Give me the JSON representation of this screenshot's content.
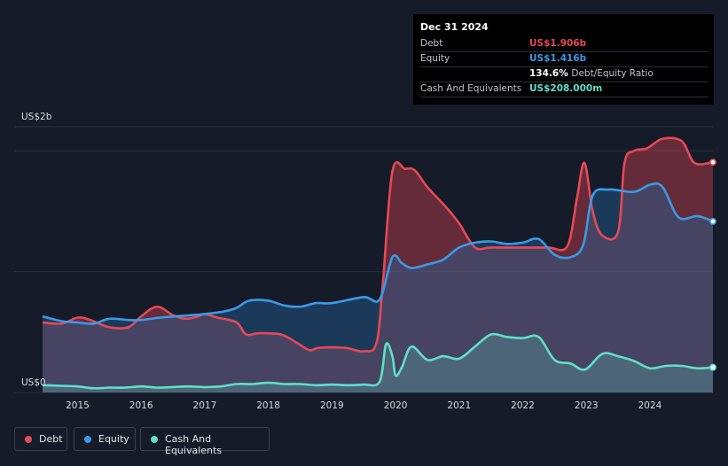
{
  "tooltip": {
    "date": "Dec 31 2024",
    "rows": [
      {
        "label": "Debt",
        "value": "US$1.906b",
        "color": "#e84855"
      },
      {
        "label": "Equity",
        "value": "US$1.416b",
        "color": "#3a9ae8"
      },
      {
        "label": "",
        "value": "134.6%",
        "suffix": "Debt/Equity Ratio",
        "color": "#ffffff"
      },
      {
        "label": "Cash And Equivalents",
        "value": "US$208.000m",
        "color": "#5fe0c8"
      }
    ]
  },
  "legend": [
    {
      "label": "Debt",
      "color": "#e84855"
    },
    {
      "label": "Equity",
      "color": "#3a9ae8"
    },
    {
      "label": "Cash And Equivalents",
      "color": "#5fe0c8"
    }
  ],
  "chart_data": {
    "type": "area",
    "ylabel_top": "US$2b",
    "ylabel_bottom": "US$0",
    "ylim": [
      0,
      2.2
    ],
    "xlim": [
      2014.45,
      2024.99
    ],
    "x_ticks": [
      "2015",
      "2016",
      "2017",
      "2018",
      "2019",
      "2020",
      "2021",
      "2022",
      "2023",
      "2024"
    ],
    "x_tick_values": [
      2015,
      2016,
      2017,
      2018,
      2019,
      2020,
      2021,
      2022,
      2023,
      2024
    ],
    "series": [
      {
        "name": "Debt",
        "color": "#e84855",
        "points": [
          [
            2014.45,
            0.58
          ],
          [
            2014.75,
            0.57
          ],
          [
            2015.0,
            0.62
          ],
          [
            2015.2,
            0.6
          ],
          [
            2015.5,
            0.54
          ],
          [
            2015.8,
            0.54
          ],
          [
            2016.0,
            0.63
          ],
          [
            2016.25,
            0.71
          ],
          [
            2016.5,
            0.64
          ],
          [
            2016.7,
            0.61
          ],
          [
            2016.9,
            0.63
          ],
          [
            2017.0,
            0.65
          ],
          [
            2017.2,
            0.62
          ],
          [
            2017.5,
            0.58
          ],
          [
            2017.65,
            0.48
          ],
          [
            2017.85,
            0.49
          ],
          [
            2018.2,
            0.48
          ],
          [
            2018.45,
            0.41
          ],
          [
            2018.65,
            0.35
          ],
          [
            2018.8,
            0.37
          ],
          [
            2019.2,
            0.37
          ],
          [
            2019.5,
            0.34
          ],
          [
            2019.7,
            0.41
          ],
          [
            2019.8,
            0.9
          ],
          [
            2019.95,
            1.83
          ],
          [
            2020.15,
            1.85
          ],
          [
            2020.3,
            1.84
          ],
          [
            2020.5,
            1.7
          ],
          [
            2020.8,
            1.53
          ],
          [
            2021.0,
            1.4
          ],
          [
            2021.25,
            1.2
          ],
          [
            2021.5,
            1.2
          ],
          [
            2022.0,
            1.2
          ],
          [
            2022.4,
            1.2
          ],
          [
            2022.7,
            1.21
          ],
          [
            2022.85,
            1.6
          ],
          [
            2022.97,
            1.9
          ],
          [
            2023.1,
            1.5
          ],
          [
            2023.25,
            1.3
          ],
          [
            2023.5,
            1.33
          ],
          [
            2023.6,
            1.9
          ],
          [
            2023.75,
            2.0
          ],
          [
            2023.95,
            2.02
          ],
          [
            2024.2,
            2.1
          ],
          [
            2024.5,
            2.08
          ],
          [
            2024.7,
            1.9
          ],
          [
            2024.99,
            1.906
          ]
        ]
      },
      {
        "name": "Equity",
        "color": "#3a9ae8",
        "points": [
          [
            2014.45,
            0.63
          ],
          [
            2014.75,
            0.59
          ],
          [
            2015.0,
            0.58
          ],
          [
            2015.25,
            0.57
          ],
          [
            2015.5,
            0.61
          ],
          [
            2015.8,
            0.6
          ],
          [
            2016.0,
            0.6
          ],
          [
            2016.3,
            0.62
          ],
          [
            2016.8,
            0.64
          ],
          [
            2017.0,
            0.65
          ],
          [
            2017.3,
            0.67
          ],
          [
            2017.5,
            0.7
          ],
          [
            2017.7,
            0.76
          ],
          [
            2018.0,
            0.76
          ],
          [
            2018.25,
            0.72
          ],
          [
            2018.5,
            0.71
          ],
          [
            2018.75,
            0.74
          ],
          [
            2019.0,
            0.74
          ],
          [
            2019.5,
            0.79
          ],
          [
            2019.75,
            0.77
          ],
          [
            2019.95,
            1.12
          ],
          [
            2020.1,
            1.07
          ],
          [
            2020.25,
            1.03
          ],
          [
            2020.5,
            1.06
          ],
          [
            2020.75,
            1.1
          ],
          [
            2021.0,
            1.2
          ],
          [
            2021.25,
            1.24
          ],
          [
            2021.5,
            1.25
          ],
          [
            2021.75,
            1.23
          ],
          [
            2022.0,
            1.24
          ],
          [
            2022.25,
            1.27
          ],
          [
            2022.5,
            1.14
          ],
          [
            2022.75,
            1.12
          ],
          [
            2022.95,
            1.22
          ],
          [
            2023.1,
            1.63
          ],
          [
            2023.35,
            1.68
          ],
          [
            2023.75,
            1.66
          ],
          [
            2024.0,
            1.72
          ],
          [
            2024.2,
            1.7
          ],
          [
            2024.45,
            1.45
          ],
          [
            2024.75,
            1.46
          ],
          [
            2024.99,
            1.416
          ]
        ]
      },
      {
        "name": "Cash And Equivalents",
        "color": "#5fe0c8",
        "points": [
          [
            2014.45,
            0.06
          ],
          [
            2014.75,
            0.055
          ],
          [
            2015.0,
            0.05
          ],
          [
            2015.25,
            0.035
          ],
          [
            2015.5,
            0.04
          ],
          [
            2015.75,
            0.04
          ],
          [
            2016.0,
            0.05
          ],
          [
            2016.25,
            0.04
          ],
          [
            2016.5,
            0.045
          ],
          [
            2016.75,
            0.05
          ],
          [
            2017.0,
            0.045
          ],
          [
            2017.25,
            0.05
          ],
          [
            2017.5,
            0.07
          ],
          [
            2017.75,
            0.07
          ],
          [
            2018.0,
            0.08
          ],
          [
            2018.25,
            0.07
          ],
          [
            2018.5,
            0.07
          ],
          [
            2018.75,
            0.06
          ],
          [
            2019.0,
            0.065
          ],
          [
            2019.25,
            0.06
          ],
          [
            2019.5,
            0.065
          ],
          [
            2019.75,
            0.09
          ],
          [
            2019.85,
            0.4
          ],
          [
            2019.95,
            0.3
          ],
          [
            2020.0,
            0.14
          ],
          [
            2020.1,
            0.21
          ],
          [
            2020.25,
            0.38
          ],
          [
            2020.5,
            0.27
          ],
          [
            2020.75,
            0.3
          ],
          [
            2021.0,
            0.28
          ],
          [
            2021.25,
            0.38
          ],
          [
            2021.5,
            0.48
          ],
          [
            2021.75,
            0.46
          ],
          [
            2022.0,
            0.45
          ],
          [
            2022.25,
            0.46
          ],
          [
            2022.5,
            0.27
          ],
          [
            2022.75,
            0.24
          ],
          [
            2022.98,
            0.19
          ],
          [
            2023.25,
            0.32
          ],
          [
            2023.5,
            0.3
          ],
          [
            2023.75,
            0.26
          ],
          [
            2024.0,
            0.2
          ],
          [
            2024.25,
            0.22
          ],
          [
            2024.5,
            0.22
          ],
          [
            2024.75,
            0.2
          ],
          [
            2024.99,
            0.208
          ]
        ]
      }
    ]
  }
}
